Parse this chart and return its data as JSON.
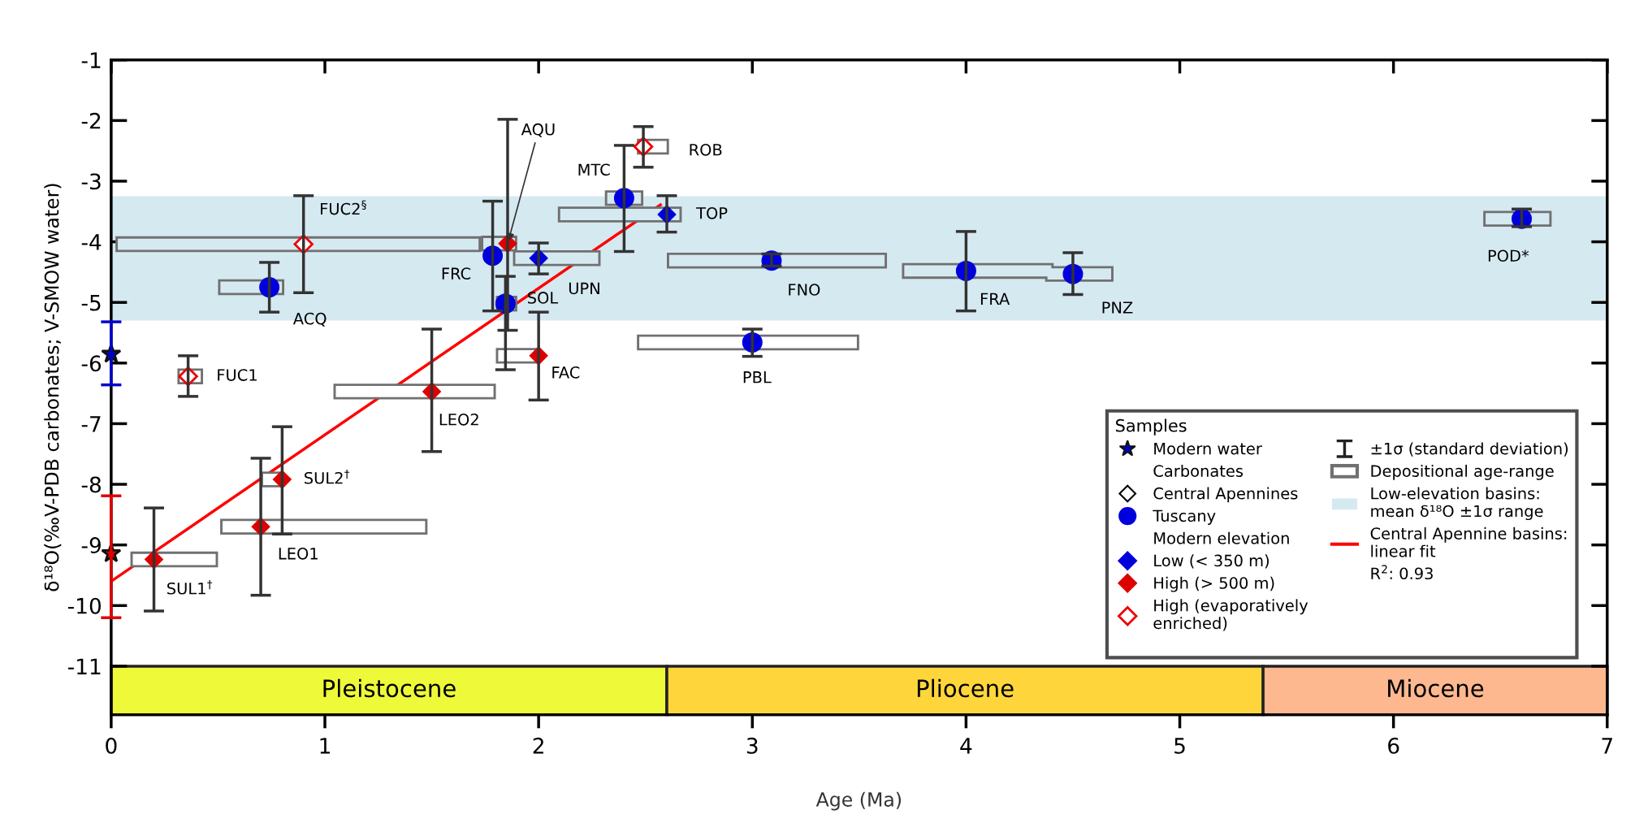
{
  "chart_data": {
    "type": "scatter",
    "xlabel": "Age (Ma)",
    "ylabel": "δ¹⁸O(‰V-PDB carbonates; V-SMOW water)",
    "legend_title": "Samples",
    "legend": "bottom right",
    "xlim": [
      0,
      7
    ],
    "xticks": [
      0,
      1,
      2,
      3,
      4,
      5,
      6,
      7
    ],
    "ylim": [
      -11.8,
      -1
    ],
    "yticks": [
      -1,
      -2,
      -3,
      -4,
      -5,
      -6,
      -7,
      -8,
      -9,
      -10,
      -11
    ],
    "bands": [
      {
        "axis": "y",
        "from": -5.3,
        "to": -3.25,
        "label": "Low-elevation basins:\nmean δ¹⁸O ±1σ range",
        "color": "#d5e9f1"
      },
      {
        "axis": "x",
        "from": 0,
        "to": 2.6,
        "label": "Pleistocene",
        "color": "#eef93a"
      },
      {
        "axis": "x",
        "from": 2.6,
        "to": 5.39,
        "label": "Pliocene",
        "color": "#fed63c"
      },
      {
        "axis": "x",
        "from": 5.39,
        "to": 7,
        "label": "Miocene",
        "color": "#fdb890"
      }
    ],
    "series": [
      {
        "name": "Central Apennine basins:\nlinear fit",
        "type": "line",
        "color": "#ff0000",
        "x": [
          0,
          2.57
        ],
        "values": [
          -9.6,
          -3.39
        ]
      },
      {
        "name": "Modern water",
        "marker": "star",
        "colors": [
          "#0000cc",
          "#e00000"
        ],
        "x": [
          0,
          0
        ],
        "values": [
          -5.85,
          -9.14
        ],
        "errors": [
          [
            -6.36,
            -5.32
          ],
          [
            -10.2,
            -8.19
          ]
        ]
      },
      {
        "name": "Tuscany",
        "marker": "circle",
        "color": "#0000dd",
        "x": [
          0.74,
          1.785,
          1.845,
          2.4,
          3.09,
          3.0,
          4.0,
          4.5,
          6.6
        ],
        "values": [
          -4.75,
          -4.23,
          -5.02,
          -3.28,
          -4.31,
          -5.66,
          -4.48,
          -4.53,
          -3.62
        ],
        "errors": [
          [
            -5.16,
            -4.34
          ],
          [
            -5.14,
            -3.33
          ],
          [
            -6.11,
            -4.57
          ],
          [
            -4.16,
            -2.41
          ],
          [
            -4.4,
            -4.2
          ],
          [
            -5.89,
            -5.44
          ],
          [
            -5.14,
            -3.83
          ],
          [
            -4.87,
            -4.18
          ],
          [
            -3.75,
            -3.46
          ]
        ],
        "xerrors": [
          [
            0.5,
            0.81
          ],
          null,
          [
            1.8,
            1.9
          ],
          [
            2.31,
            2.49
          ],
          [
            2.6,
            3.63
          ],
          [
            2.46,
            3.5
          ],
          [
            3.7,
            4.41
          ],
          [
            4.37,
            4.69
          ],
          [
            6.42,
            6.74
          ]
        ]
      },
      {
        "name": "Low (< 350 m)",
        "marker": "diamond",
        "color": "#0000dd",
        "x": [
          2.0,
          2.6
        ],
        "values": [
          -4.27,
          -3.55
        ],
        "errors": [
          [
            -4.53,
            -4.02
          ],
          [
            -3.84,
            -3.24
          ]
        ],
        "xerrors": [
          [
            1.88,
            2.29
          ],
          [
            2.09,
            2.67
          ]
        ]
      },
      {
        "name": "High (> 500 m)",
        "marker": "diamond",
        "color": "#dd0000",
        "x": [
          0.2,
          0.7,
          0.8,
          1.5,
          1.855,
          2.0
        ],
        "values": [
          -9.24,
          -8.7,
          -7.92,
          -6.47,
          -4.03,
          -5.88
        ],
        "errors": [
          [
            -10.09,
            -8.39
          ],
          [
            -9.83,
            -7.57
          ],
          [
            -8.82,
            -7.05
          ],
          [
            -7.46,
            -5.44
          ],
          [
            -5.46,
            -1.98
          ],
          [
            -6.61,
            -5.16
          ]
        ],
        "xerrors": [
          [
            0.09,
            0.5
          ],
          [
            0.51,
            1.48
          ],
          [
            0.7,
            0.8
          ],
          [
            1.04,
            1.8
          ],
          [
            1.73,
            1.9
          ],
          [
            1.8,
            2.0
          ]
        ]
      },
      {
        "name": "High (evaporatively\nenriched)",
        "marker": "diamond-open",
        "color": "#ee0000",
        "x": [
          0.36,
          0.9,
          2.49
        ],
        "values": [
          -6.22,
          -4.04,
          -2.43
        ],
        "errors": [
          [
            -6.55,
            -5.88
          ],
          [
            -4.84,
            -3.24
          ],
          [
            -2.77,
            -2.1
          ]
        ],
        "xerrors": [
          [
            0.31,
            0.43
          ],
          [
            0.02,
            1.73
          ],
          [
            2.46,
            2.61
          ]
        ]
      }
    ],
    "annotations": [
      "Carbonates",
      "Central Apennines",
      "Modern elevation",
      "±1σ (standard deviation)",
      "Depositional age-range",
      "R$^{2}$: 0.93",
      {
        "text": "ACQ",
        "x": 0.74,
        "y": -4.75
      },
      {
        "text": "FRC",
        "x": 1.785,
        "y": -4.23
      },
      {
        "text": "SOL",
        "x": 1.845,
        "y": -5.02
      },
      {
        "text": "MTC",
        "x": 2.4,
        "y": -3.28
      },
      {
        "text": "FNO",
        "x": 3.09,
        "y": -4.31
      },
      {
        "text": "PBL",
        "x": 3.0,
        "y": -5.66
      },
      {
        "text": "FRA",
        "x": 4.0,
        "y": -4.48
      },
      {
        "text": "PNZ",
        "x": 4.5,
        "y": -4.53
      },
      {
        "text": "POD*",
        "x": 6.6,
        "y": -3.62
      },
      {
        "text": "UPN",
        "x": 2.0,
        "y": -4.27
      },
      {
        "text": "TOP",
        "x": 2.6,
        "y": -3.55
      },
      {
        "text": "SUL1$^{†}$",
        "x": 0.2,
        "y": -9.24
      },
      {
        "text": "LEO1",
        "x": 0.7,
        "y": -8.7
      },
      {
        "text": "SUL2$^{†}$",
        "x": 0.8,
        "y": -7.92
      },
      {
        "text": "LEO2",
        "x": 1.5,
        "y": -6.47
      },
      {
        "text": "AQU",
        "x": 1.855,
        "y": -4.03
      },
      {
        "text": "FAC",
        "x": 2.0,
        "y": -5.88
      },
      {
        "text": "FUC1",
        "x": 0.36,
        "y": -6.22
      },
      {
        "text": "FUC2$^{§}$",
        "x": 0.9,
        "y": -4.04
      },
      {
        "text": "ROB",
        "x": 2.49,
        "y": -2.43
      }
    ]
  }
}
